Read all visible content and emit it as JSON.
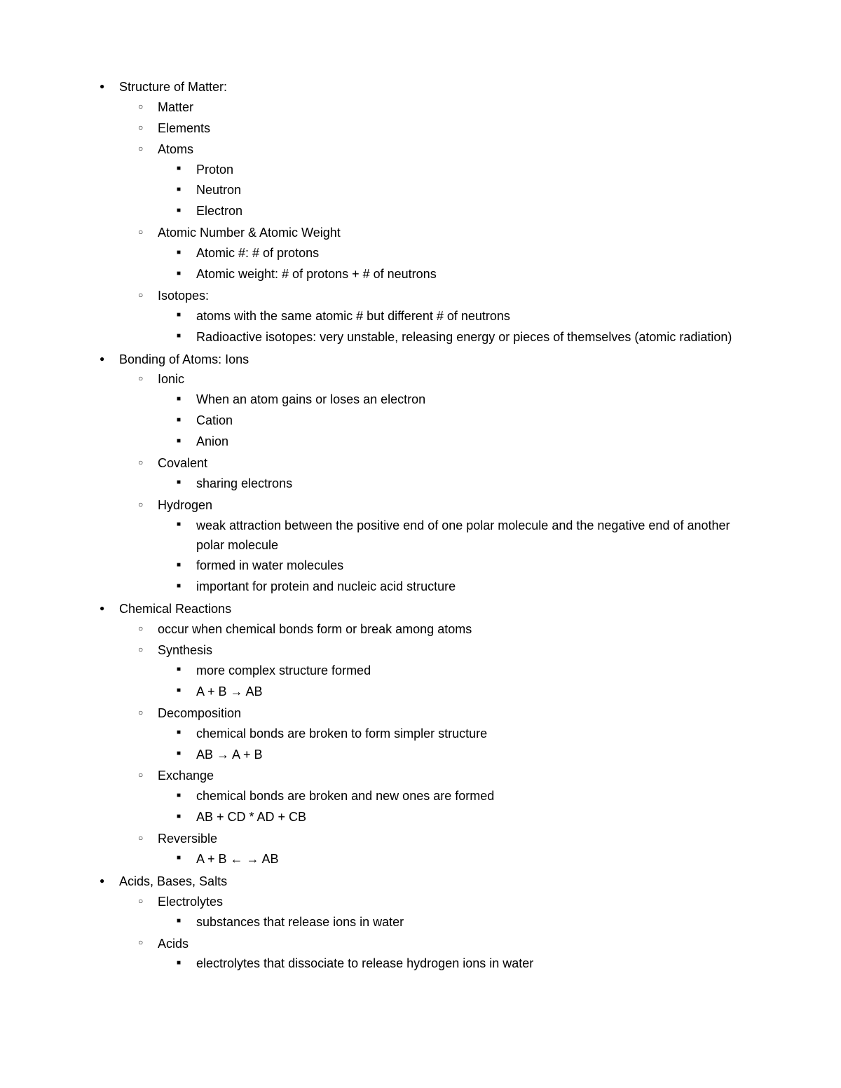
{
  "document": {
    "background_color": "#ffffff",
    "text_color": "#000000",
    "font_family": "Arial",
    "font_size_pt": 11,
    "bullets": {
      "level1": "●",
      "level2": "○",
      "level3": "■"
    }
  },
  "outline": [
    {
      "text": "Structure of Matter:",
      "children": [
        {
          "text": "Matter"
        },
        {
          "text": "Elements"
        },
        {
          "text": "Atoms",
          "children": [
            {
              "text": "Proton"
            },
            {
              "text": "Neutron"
            },
            {
              "text": "Electron"
            }
          ]
        },
        {
          "text": "Atomic Number & Atomic Weight",
          "children": [
            {
              "text": "Atomic #: # of protons"
            },
            {
              "text": "Atomic weight: # of protons + # of neutrons"
            }
          ]
        },
        {
          "text": "Isotopes:",
          "children": [
            {
              "text": "atoms with the same atomic # but different # of neutrons"
            },
            {
              "text": "Radioactive isotopes: very unstable, releasing energy or pieces of themselves (atomic radiation)"
            }
          ]
        }
      ]
    },
    {
      "text": "Bonding of Atoms: Ions",
      "children": [
        {
          "text": "Ionic",
          "children": [
            {
              "text": "When an atom gains or loses an electron"
            },
            {
              "text": "Cation"
            },
            {
              "text": "Anion"
            }
          ]
        },
        {
          "text": "Covalent",
          "children": [
            {
              "text": "sharing electrons"
            }
          ]
        },
        {
          "text": "Hydrogen",
          "children": [
            {
              "text": "weak attraction between the positive end of one polar molecule and the negative end of another polar molecule"
            },
            {
              "text": "formed in water molecules"
            },
            {
              "text": "important for protein and nucleic acid structure"
            }
          ]
        }
      ]
    },
    {
      "text": "Chemical Reactions",
      "children": [
        {
          "text": "occur when chemical bonds form or break among atoms"
        },
        {
          "text": "Synthesis",
          "children": [
            {
              "text": "more complex structure formed"
            },
            {
              "text": "A + B → AB"
            }
          ]
        },
        {
          "text": "Decomposition",
          "children": [
            {
              "text": "chemical bonds are broken to form simpler structure"
            },
            {
              "text": "AB → A + B"
            }
          ]
        },
        {
          "text": "Exchange",
          "children": [
            {
              "text": "chemical bonds are broken and new ones are formed"
            },
            {
              "text": "AB + CD * AD + CB"
            }
          ]
        },
        {
          "text": "Reversible",
          "children": [
            {
              "text": "A + B ← → AB"
            }
          ]
        }
      ]
    },
    {
      "text": "Acids, Bases, Salts",
      "children": [
        {
          "text": "Electrolytes",
          "children": [
            {
              "text": "substances that release ions in water"
            }
          ]
        },
        {
          "text": "Acids",
          "children": [
            {
              "text": "electrolytes that dissociate to release hydrogen ions in water"
            }
          ]
        }
      ]
    }
  ]
}
